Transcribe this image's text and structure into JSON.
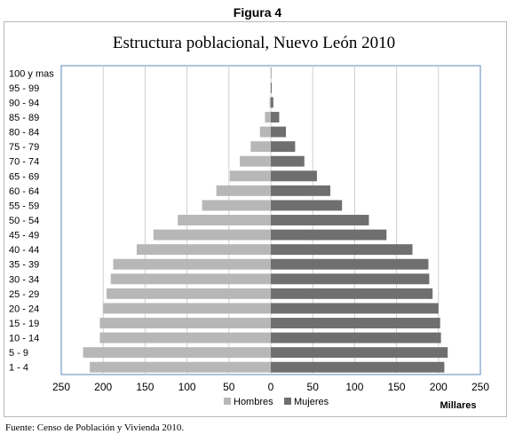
{
  "figure_label": "Figura 4",
  "source_note": "Fuente: Censo de Población y Vivienda 2010.",
  "chart_data": {
    "type": "bar",
    "orientation": "horizontal",
    "title": "Estructura poblacional, Nuevo León 2010",
    "unit_label": "Millares",
    "categories": [
      "100 y mas",
      "95 - 99",
      "90 - 94",
      "85 - 89",
      "80 - 84",
      "75 - 79",
      "70 - 74",
      "65 - 69",
      "60 - 64",
      "55 - 59",
      "50 - 54",
      "45 - 49",
      "40 - 44",
      "35 - 39",
      "30 - 34",
      "25 - 29",
      "20 - 24",
      "15 - 19",
      "10 - 14",
      "5 - 9",
      "1 - 4"
    ],
    "series": [
      {
        "name": "Hombres",
        "color": "#b7b7b7",
        "values": [
          0.1,
          0.5,
          1.5,
          7,
          13,
          24,
          37,
          49,
          65,
          82,
          111,
          140,
          160,
          188,
          191,
          196,
          200,
          204,
          204,
          224,
          216
        ]
      },
      {
        "name": "Mujeres",
        "color": "#6f6f6f",
        "values": [
          0.2,
          1,
          3,
          10,
          18,
          29,
          40,
          55,
          71,
          85,
          117,
          138,
          169,
          188,
          189,
          193,
          200,
          202,
          203,
          211,
          207
        ]
      }
    ],
    "x_ticks": [
      "250",
      "200",
      "150",
      "100",
      "50",
      "0",
      "50",
      "100",
      "150",
      "200",
      "250"
    ],
    "xlim": [
      -250,
      250
    ],
    "grid": "vertical",
    "legend_position": "bottom-center"
  }
}
